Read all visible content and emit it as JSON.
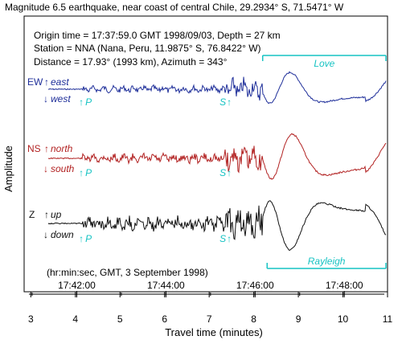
{
  "title": "Magnitude 6.5 earthquake, near coast of central Chile, 29.2934° S, 71.5471° W",
  "info": [
    "Origin time = 17:37:59.0 GMT 1998/09/03, Depth = 27 km",
    "Station = NNA (Nana, Peru, 11.9875° S, 76.8422° W)",
    "Distance = 17.93° (1993 km), Azimuth = 343°"
  ],
  "colors": {
    "ew": "#1f2f9a",
    "ns": "#b22222",
    "z": "#111111",
    "annotation": "#17c3c3",
    "axis": "#000000"
  },
  "chart_data": {
    "type": "line",
    "xlabel": "Travel time (minutes)",
    "ylabel": "Amplitude",
    "xlim": [
      2.85,
      11.0
    ],
    "xticks": [
      3,
      4,
      5,
      6,
      7,
      8,
      9,
      10,
      11
    ],
    "gmt_axis_label": "(hr:min:sec, GMT, 3 September 1998)",
    "gmt_ticks": [
      {
        "x": 4.03,
        "label": "17:42:00"
      },
      {
        "x": 6.03,
        "label": "17:44:00"
      },
      {
        "x": 8.03,
        "label": "17:46:00"
      },
      {
        "x": 10.03,
        "label": "17:48:00"
      }
    ],
    "p_arrival": 4.15,
    "s_arrival": 7.45,
    "love_window": [
      8.2,
      11.0
    ],
    "rayleigh_window": [
      8.3,
      11.0
    ],
    "series": [
      {
        "id": "ew",
        "component": "EW",
        "up_label": "east",
        "down_label": "west"
      },
      {
        "id": "ns",
        "component": "NS",
        "up_label": "north",
        "down_label": "south"
      },
      {
        "id": "z",
        "component": "Z",
        "up_label": "up",
        "down_label": "down"
      }
    ],
    "phase_labels": {
      "p": "P",
      "s": "S",
      "love": "Love",
      "rayleigh": "Rayleigh"
    }
  }
}
